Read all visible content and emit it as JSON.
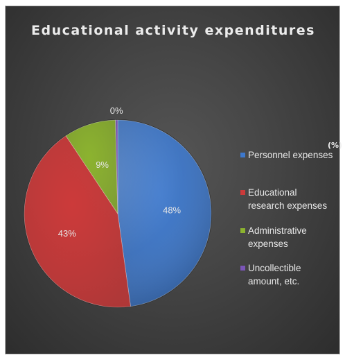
{
  "chart_data": {
    "type": "pie",
    "title": "Educational activity expenditures",
    "unit": "(%)",
    "start_angle_deg": 0,
    "direction": "clockwise",
    "legend_position": "right",
    "slices": [
      {
        "name": "Personnel expenses",
        "value": 48,
        "label": "48%",
        "color": "#3d78cc"
      },
      {
        "name": "Educational research expenses",
        "value": 43,
        "label": "43%",
        "color": "#cc3a3a"
      },
      {
        "name": "Administrative expenses",
        "value": 9,
        "label": "9%",
        "color": "#8cb32f"
      },
      {
        "name": "Uncollectible amount, etc.",
        "value": 0.4,
        "label": "0%",
        "color": "#7b55b8"
      }
    ],
    "legend": [
      {
        "lines": [
          "Personnel expenses"
        ],
        "color": "#3d78cc"
      },
      {
        "lines": [
          "Educational",
          "research expenses"
        ],
        "color": "#cc3a3a"
      },
      {
        "lines": [
          "Administrative",
          "expenses"
        ],
        "color": "#8cb32f"
      },
      {
        "lines": [
          "Uncollectible",
          "amount, etc."
        ],
        "color": "#7b55b8"
      }
    ]
  }
}
